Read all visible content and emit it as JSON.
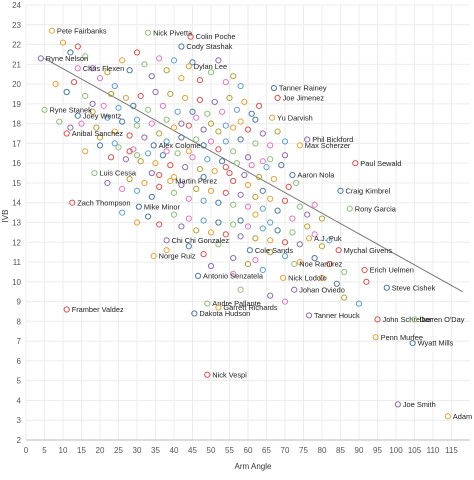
{
  "chart_data": {
    "type": "scatter",
    "title": "",
    "xlabel": "Arm Angle",
    "ylabel": "IVB",
    "xlim": [
      0,
      120
    ],
    "ylim": [
      2,
      24
    ],
    "x_ticks": [
      0,
      5,
      10,
      15,
      20,
      25,
      30,
      35,
      40,
      45,
      50,
      55,
      60,
      65,
      70,
      75,
      80,
      85,
      90,
      95,
      100,
      105,
      110,
      115
    ],
    "y_ticks": [
      2,
      3,
      4,
      5,
      6,
      7,
      8,
      9,
      10,
      11,
      12,
      13,
      14,
      15,
      16,
      17,
      18,
      19,
      20,
      21,
      22,
      23,
      24
    ],
    "grid": "both",
    "trend_line": {
      "x1": 5,
      "y1": 21.3,
      "x2": 118,
      "y2": 9.5,
      "color": "#777777"
    },
    "labeled_points": [
      {
        "name": "Pete Fairbanks",
        "x": 7,
        "y": 22.7,
        "color": "#e8a23a"
      },
      {
        "name": "Nick Pivetta",
        "x": 33,
        "y": 22.6,
        "color": "#8fbf7a"
      },
      {
        "name": "Colin Poche",
        "x": 44.5,
        "y": 22.4,
        "color": "#d9534f"
      },
      {
        "name": "Cody Stashak",
        "x": 42,
        "y": 21.9,
        "color": "#4c78a8"
      },
      {
        "name": "Ryne Nelson",
        "x": 4,
        "y": 21.3,
        "color": "#8c6bb1"
      },
      {
        "name": "Chris Flexen",
        "x": 14,
        "y": 20.8,
        "color": "#e377c2"
      },
      {
        "name": "Dylan Lee",
        "x": 44,
        "y": 20.9,
        "color": "#e8a23a"
      },
      {
        "name": "Tanner Rainey",
        "x": 67,
        "y": 19.8,
        "color": "#4c78a8"
      },
      {
        "name": "Joe Jimenez",
        "x": 68,
        "y": 19.3,
        "color": "#d9534f"
      },
      {
        "name": "Ryne Stanek",
        "x": 5,
        "y": 18.7,
        "color": "#8fbf7a"
      },
      {
        "name": "Joey Wentz",
        "x": 14,
        "y": 18.4,
        "color": "#4c78a8"
      },
      {
        "name": "Yu Darvish",
        "x": 66.5,
        "y": 18.3,
        "color": "#e8a23a"
      },
      {
        "name": "Anibal Sanchez",
        "x": 11,
        "y": 17.5,
        "color": "#d9534f"
      },
      {
        "name": "Phil Bickford",
        "x": 76,
        "y": 17.2,
        "color": "#8c6bb1"
      },
      {
        "name": "Alex Colome",
        "x": 34.5,
        "y": 16.9,
        "color": "#4c78a8"
      },
      {
        "name": "Max Scherzer",
        "x": 74,
        "y": 16.9,
        "color": "#e8a23a"
      },
      {
        "name": "Luis Cessa",
        "x": 18.5,
        "y": 15.5,
        "color": "#8fbf7a"
      },
      {
        "name": "Aaron Nola",
        "x": 72,
        "y": 15.4,
        "color": "#4c78a8"
      },
      {
        "name": "Martin Perez",
        "x": 39,
        "y": 15.1,
        "color": "#e8a23a"
      },
      {
        "name": "Paul Sewald",
        "x": 89,
        "y": 16.0,
        "color": "#d9534f"
      },
      {
        "name": "Craig Kimbrel",
        "x": 85,
        "y": 14.6,
        "color": "#4c78a8"
      },
      {
        "name": "Zach Thompson",
        "x": 12.5,
        "y": 14.0,
        "color": "#d9534f"
      },
      {
        "name": "Mike Minor",
        "x": 30.5,
        "y": 13.8,
        "color": "#4c78a8"
      },
      {
        "name": "Rony Garcia",
        "x": 87.5,
        "y": 13.7,
        "color": "#8fbf7a"
      },
      {
        "name": "A.J. Puk",
        "x": 76.5,
        "y": 12.2,
        "color": "#e8a23a"
      },
      {
        "name": "Chi Chi Gonzalez",
        "x": 38,
        "y": 12.1,
        "color": "#8c6bb1"
      },
      {
        "name": "Cole Sands",
        "x": 60.5,
        "y": 11.6,
        "color": "#4c78a8"
      },
      {
        "name": "Mychal Givens",
        "x": 84.5,
        "y": 11.6,
        "color": "#d9534f"
      },
      {
        "name": "Norge Ruiz",
        "x": 34.5,
        "y": 11.3,
        "color": "#e8a23a"
      },
      {
        "name": "Noe Ramirez",
        "x": 72.5,
        "y": 10.9,
        "color": "#8fbf7a"
      },
      {
        "name": "Antonio Senzatela",
        "x": 46.5,
        "y": 10.3,
        "color": "#4c78a8"
      },
      {
        "name": "Erich Uelmen",
        "x": 91.5,
        "y": 10.6,
        "color": "#d9534f"
      },
      {
        "name": "Nick Lodolo",
        "x": 69.5,
        "y": 10.2,
        "color": "#e8a23a"
      },
      {
        "name": "Johan Oviedo",
        "x": 72.5,
        "y": 9.6,
        "color": "#8c6bb1"
      },
      {
        "name": "Steve Cishek",
        "x": 97.5,
        "y": 9.7,
        "color": "#4c78a8"
      },
      {
        "name": "Andre Pallante",
        "x": 49,
        "y": 8.9,
        "color": "#8fbf7a"
      },
      {
        "name": "Framber Valdez",
        "x": 11,
        "y": 8.6,
        "color": "#d9534f"
      },
      {
        "name": "Garrett Richards",
        "x": 52,
        "y": 8.7,
        "color": "#e8a23a"
      },
      {
        "name": "Dakota Hudson",
        "x": 45.5,
        "y": 8.4,
        "color": "#4c78a8"
      },
      {
        "name": "Tanner Houck",
        "x": 76.5,
        "y": 8.3,
        "color": "#8c6bb1"
      },
      {
        "name": "John Schreiber",
        "x": 95,
        "y": 8.1,
        "color": "#d9534f"
      },
      {
        "name": "Darren O'Day",
        "x": 105,
        "y": 8.1,
        "color": "#8fbf7a"
      },
      {
        "name": "Penn Murfee",
        "x": 94.5,
        "y": 7.2,
        "color": "#e8a23a"
      },
      {
        "name": "Wyatt Mills",
        "x": 104.5,
        "y": 6.9,
        "color": "#4c78a8"
      },
      {
        "name": "Nick Vespi",
        "x": 49,
        "y": 5.3,
        "color": "#d9534f"
      },
      {
        "name": "Joe Smith",
        "x": 100.5,
        "y": 3.8,
        "color": "#8c6bb1"
      },
      {
        "name": "Adam Cimber",
        "x": 114,
        "y": 3.2,
        "color": "#e8a23a"
      }
    ],
    "extra_points": [
      [
        10,
        22.1
      ],
      [
        12,
        21.6
      ],
      [
        14,
        21.9
      ],
      [
        16,
        21.4
      ],
      [
        18,
        20.8
      ],
      [
        20,
        20.3
      ],
      [
        22,
        20.6
      ],
      [
        24,
        19.9
      ],
      [
        26,
        21.2
      ],
      [
        28,
        20.7
      ],
      [
        30,
        21.6
      ],
      [
        32,
        21.0
      ],
      [
        34,
        20.4
      ],
      [
        36,
        21.3
      ],
      [
        38,
        20.7
      ],
      [
        40,
        21.2
      ],
      [
        42,
        20.3
      ],
      [
        45,
        21.1
      ],
      [
        47,
        20.2
      ],
      [
        50,
        20.6
      ],
      [
        52,
        21.2
      ],
      [
        54,
        20.1
      ],
      [
        56,
        20.4
      ],
      [
        58,
        19.9
      ],
      [
        8,
        20.0
      ],
      [
        11,
        19.6
      ],
      [
        13,
        20.1
      ],
      [
        16,
        19.4
      ],
      [
        18,
        19.0
      ],
      [
        21,
        18.9
      ],
      [
        23,
        19.5
      ],
      [
        25,
        18.8
      ],
      [
        27,
        19.3
      ],
      [
        29,
        18.9
      ],
      [
        31,
        19.4
      ],
      [
        33,
        18.7
      ],
      [
        35,
        19.6
      ],
      [
        37,
        18.9
      ],
      [
        39,
        19.5
      ],
      [
        41,
        18.6
      ],
      [
        43,
        19.3
      ],
      [
        45,
        18.6
      ],
      [
        47,
        19.2
      ],
      [
        49,
        18.5
      ],
      [
        51,
        19.1
      ],
      [
        53,
        18.6
      ],
      [
        55,
        19.3
      ],
      [
        57,
        18.7
      ],
      [
        59,
        19.1
      ],
      [
        61,
        18.5
      ],
      [
        63,
        18.9
      ],
      [
        9,
        18.1
      ],
      [
        12,
        17.8
      ],
      [
        15,
        18.0
      ],
      [
        19,
        17.8
      ],
      [
        22,
        18.3
      ],
      [
        24,
        17.6
      ],
      [
        26,
        18.1
      ],
      [
        28,
        17.4
      ],
      [
        30,
        17.9
      ],
      [
        32,
        17.3
      ],
      [
        34,
        18.0
      ],
      [
        36,
        17.5
      ],
      [
        38,
        17.1
      ],
      [
        40,
        17.8
      ],
      [
        42,
        17.3
      ],
      [
        44,
        17.9
      ],
      [
        46,
        17.2
      ],
      [
        48,
        17.7
      ],
      [
        50,
        17.1
      ],
      [
        52,
        17.6
      ],
      [
        54,
        17.1
      ],
      [
        56,
        17.8
      ],
      [
        58,
        17.2
      ],
      [
        60,
        17.7
      ],
      [
        62,
        17.0
      ],
      [
        64,
        17.5
      ],
      [
        66,
        16.9
      ],
      [
        68,
        17.6
      ],
      [
        70,
        17.1
      ],
      [
        16,
        16.6
      ],
      [
        20,
        16.9
      ],
      [
        23,
        16.3
      ],
      [
        25,
        16.8
      ],
      [
        27,
        16.2
      ],
      [
        29,
        16.7
      ],
      [
        31,
        16.1
      ],
      [
        33,
        16.5
      ],
      [
        35,
        16.0
      ],
      [
        37,
        16.4
      ],
      [
        39,
        15.9
      ],
      [
        41,
        16.5
      ],
      [
        43,
        15.8
      ],
      [
        45,
        16.3
      ],
      [
        47,
        15.7
      ],
      [
        49,
        16.2
      ],
      [
        51,
        15.6
      ],
      [
        53,
        16.1
      ],
      [
        55,
        15.5
      ],
      [
        57,
        16.0
      ],
      [
        59,
        15.4
      ],
      [
        61,
        15.9
      ],
      [
        63,
        15.3
      ],
      [
        65,
        15.8
      ],
      [
        67,
        15.2
      ],
      [
        69,
        15.9
      ],
      [
        71,
        14.8
      ],
      [
        73,
        15.0
      ],
      [
        22,
        15.0
      ],
      [
        26,
        14.7
      ],
      [
        28,
        15.2
      ],
      [
        30,
        14.6
      ],
      [
        32,
        15.0
      ],
      [
        34,
        14.3
      ],
      [
        36,
        14.8
      ],
      [
        40,
        14.5
      ],
      [
        42,
        14.9
      ],
      [
        44,
        14.2
      ],
      [
        46,
        14.7
      ],
      [
        48,
        14.1
      ],
      [
        50,
        14.6
      ],
      [
        52,
        14.0
      ],
      [
        54,
        14.5
      ],
      [
        56,
        13.9
      ],
      [
        58,
        14.4
      ],
      [
        60,
        13.8
      ],
      [
        62,
        14.3
      ],
      [
        64,
        13.7
      ],
      [
        66,
        14.2
      ],
      [
        68,
        13.6
      ],
      [
        70,
        14.1
      ],
      [
        74,
        13.8
      ],
      [
        76,
        13.4
      ],
      [
        78,
        13.9
      ],
      [
        80,
        13.2
      ],
      [
        26,
        13.5
      ],
      [
        30,
        13.0
      ],
      [
        33,
        13.3
      ],
      [
        36,
        12.9
      ],
      [
        40,
        13.4
      ],
      [
        42,
        12.8
      ],
      [
        44,
        13.2
      ],
      [
        46,
        12.6
      ],
      [
        48,
        13.1
      ],
      [
        50,
        12.5
      ],
      [
        52,
        13.0
      ],
      [
        54,
        12.4
      ],
      [
        56,
        12.9
      ],
      [
        58,
        12.3
      ],
      [
        60,
        12.8
      ],
      [
        62,
        12.2
      ],
      [
        64,
        12.7
      ],
      [
        66,
        12.1
      ],
      [
        68,
        12.6
      ],
      [
        70,
        12.0
      ],
      [
        72,
        12.5
      ],
      [
        74,
        11.9
      ],
      [
        78,
        12.4
      ],
      [
        80,
        11.8
      ],
      [
        82,
        12.1
      ],
      [
        38,
        11.6
      ],
      [
        44,
        11.8
      ],
      [
        48,
        11.4
      ],
      [
        52,
        11.9
      ],
      [
        56,
        11.2
      ],
      [
        62,
        11.1
      ],
      [
        66,
        11.5
      ],
      [
        70,
        11.3
      ],
      [
        74,
        11.0
      ],
      [
        78,
        11.2
      ],
      [
        82,
        10.9
      ],
      [
        86,
        10.5
      ],
      [
        50,
        10.8
      ],
      [
        56,
        10.4
      ],
      [
        60,
        10.9
      ],
      [
        64,
        10.6
      ],
      [
        80,
        10.2
      ],
      [
        84,
        9.9
      ],
      [
        92,
        10.0
      ],
      [
        58,
        9.6
      ],
      [
        66,
        9.3
      ],
      [
        70,
        9.0
      ],
      [
        86,
        9.2
      ],
      [
        90,
        8.9
      ],
      [
        44,
        16.6
      ],
      [
        48,
        16.9
      ],
      [
        52,
        16.7
      ],
      [
        56,
        16.6
      ],
      [
        60,
        16.3
      ],
      [
        64,
        16.1
      ],
      [
        20,
        17.3
      ],
      [
        24,
        17.0
      ],
      [
        60,
        14.9
      ],
      [
        64,
        14.6
      ],
      [
        36,
        15.4
      ],
      [
        38,
        18.2
      ],
      [
        42,
        18.0
      ],
      [
        46,
        18.3
      ],
      [
        50,
        18.0
      ],
      [
        54,
        17.9
      ],
      [
        58,
        18.1
      ],
      [
        62,
        18.2
      ],
      [
        28,
        16.6
      ],
      [
        30,
        16.4
      ],
      [
        34,
        15.5
      ],
      [
        38,
        16.6
      ],
      [
        18,
        18.6
      ],
      [
        30,
        18.2
      ],
      [
        40,
        15.3
      ],
      [
        48,
        15.3
      ],
      [
        56,
        15.1
      ],
      [
        66,
        16.2
      ],
      [
        70,
        16.4
      ],
      [
        72,
        13.2
      ],
      [
        76,
        12.8
      ],
      [
        66,
        13.0
      ],
      [
        62,
        13.4
      ],
      [
        58,
        13.1
      ],
      [
        54,
        15.8
      ]
    ]
  }
}
